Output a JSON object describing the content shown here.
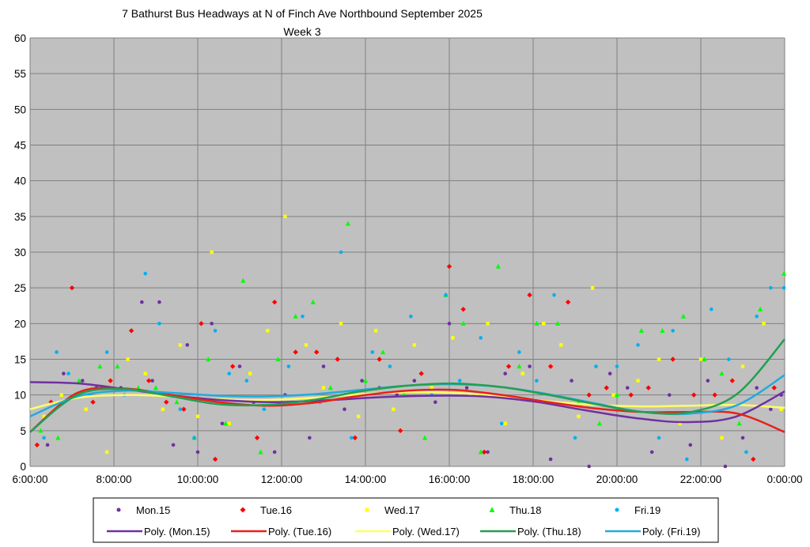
{
  "chart_data": {
    "type": "scatter",
    "title": "7 Bathurst Bus Headways at N of Finch Ave Northbound September 2025",
    "subtitle": "Week 3",
    "xlabel": "",
    "ylabel": "",
    "ylim": [
      0,
      60
    ],
    "y_ticks": [
      "0",
      "5",
      "10",
      "15",
      "20",
      "25",
      "30",
      "35",
      "40",
      "45",
      "50",
      "55",
      "60"
    ],
    "xlim": [
      "6:00:00",
      "0:00:00"
    ],
    "x_ticks": [
      "6:00:00",
      "8:00:00",
      "10:00:00",
      "12:00:00",
      "14:00:00",
      "16:00:00",
      "18:00:00",
      "20:00:00",
      "22:00:00",
      "0:00:00"
    ],
    "grid": true,
    "legend_placement": "bottom",
    "plot_background": "#c0c0c0",
    "series": [
      {
        "name": "Mon.15",
        "marker": "circle",
        "color": "#7030a0",
        "x": [
          "6:25",
          "6:48",
          "7:15",
          "7:35",
          "8:10",
          "8:40",
          "8:55",
          "9:05",
          "9:25",
          "9:45",
          "10:00",
          "10:20",
          "10:35",
          "11:00",
          "11:20",
          "11:50",
          "12:05",
          "12:40",
          "13:00",
          "13:30",
          "13:55",
          "14:20",
          "14:45",
          "15:10",
          "15:40",
          "16:00",
          "16:25",
          "16:55",
          "17:20",
          "17:55",
          "18:25",
          "18:55",
          "19:20",
          "19:50",
          "20:15",
          "20:50",
          "21:15",
          "21:45",
          "22:10",
          "22:35",
          "23:00",
          "23:20",
          "23:40",
          "23:55"
        ],
        "y": [
          3,
          13,
          12,
          11,
          11,
          23,
          12,
          23,
          3,
          17,
          2,
          20,
          6,
          14,
          9,
          2,
          10,
          4,
          14,
          8,
          12,
          11,
          10,
          12,
          9,
          20,
          11,
          2,
          13,
          14,
          1,
          12,
          0,
          13,
          11,
          2,
          10,
          3,
          12,
          0,
          4,
          11,
          8,
          10
        ],
        "fit": [
          11.8,
          11.6,
          10.7,
          9.8,
          9.2,
          9.0,
          9.3,
          9.7,
          9.9,
          9.8,
          9.1,
          7.9,
          6.8,
          6.2,
          6.9,
          10.5
        ]
      },
      {
        "name": "Tue.16",
        "marker": "diamond",
        "color": "#ff0000",
        "x": [
          "6:10",
          "6:30",
          "7:00",
          "7:30",
          "7:55",
          "8:25",
          "8:50",
          "9:15",
          "9:40",
          "10:05",
          "10:25",
          "10:50",
          "11:25",
          "11:50",
          "12:20",
          "12:50",
          "13:20",
          "13:45",
          "14:20",
          "14:50",
          "15:20",
          "16:00",
          "16:20",
          "16:50",
          "17:25",
          "17:55",
          "18:25",
          "18:50",
          "19:20",
          "19:45",
          "20:20",
          "20:45",
          "21:20",
          "21:50",
          "22:20",
          "22:45",
          "23:15",
          "23:45"
        ],
        "y": [
          3,
          9,
          25,
          9,
          12,
          19,
          12,
          9,
          8,
          20,
          1,
          14,
          4,
          23,
          16,
          16,
          15,
          4,
          15,
          5,
          13,
          28,
          22,
          2,
          14,
          24,
          14,
          23,
          10,
          11,
          10,
          11,
          15,
          10,
          10,
          12,
          1,
          11
        ],
        "fit": [
          4.8,
          10.3,
          10.9,
          10.0,
          9.0,
          8.5,
          8.9,
          9.9,
          10.6,
          10.7,
          10.0,
          9.0,
          8.1,
          7.6,
          7.6,
          7.4,
          4.8
        ]
      },
      {
        "name": "Wed.17",
        "marker": "square",
        "color": "#ffff00",
        "x": [
          "6:20",
          "6:45",
          "7:20",
          "7:50",
          "8:20",
          "8:45",
          "9:10",
          "9:35",
          "10:00",
          "10:20",
          "10:45",
          "11:15",
          "11:40",
          "12:05",
          "12:35",
          "13:00",
          "13:25",
          "13:50",
          "14:15",
          "14:40",
          "15:10",
          "15:35",
          "16:05",
          "16:30",
          "16:55",
          "17:20",
          "17:45",
          "18:15",
          "18:40",
          "19:05",
          "19:25",
          "19:55",
          "20:30",
          "21:00",
          "21:30",
          "22:00",
          "22:30",
          "23:00",
          "23:30",
          "23:55"
        ],
        "y": [
          7,
          10,
          8,
          2,
          15,
          13,
          8,
          17,
          7,
          30,
          6,
          13,
          19,
          35,
          17,
          11,
          20,
          7,
          19,
          8,
          17,
          11,
          18,
          10,
          20,
          6,
          13,
          20,
          17,
          7,
          25,
          10,
          12,
          15,
          6,
          15,
          4,
          14,
          20,
          8
        ],
        "fit": [
          8.0,
          9.6,
          10.0,
          9.8,
          9.4,
          9.3,
          9.6,
          10.1,
          10.4,
          10.3,
          9.8,
          9.1,
          8.6,
          8.4,
          8.5,
          8.6,
          8.2
        ]
      },
      {
        "name": "Thu.18",
        "marker": "triangle",
        "color": "#00ff00",
        "x": [
          "6:15",
          "6:40",
          "7:10",
          "7:40",
          "8:05",
          "8:35",
          "9:00",
          "9:30",
          "9:55",
          "10:15",
          "10:40",
          "11:05",
          "11:30",
          "11:55",
          "12:20",
          "12:45",
          "13:10",
          "13:35",
          "14:00",
          "14:25",
          "14:55",
          "15:25",
          "15:55",
          "16:20",
          "16:45",
          "17:10",
          "17:40",
          "18:05",
          "18:35",
          "19:05",
          "19:35",
          "20:00",
          "20:35",
          "21:05",
          "21:35",
          "22:05",
          "22:30",
          "22:55",
          "23:25",
          "23:59"
        ],
        "y": [
          5,
          4,
          12,
          14,
          14,
          11,
          11,
          9,
          4,
          15,
          6,
          26,
          2,
          15,
          21,
          23,
          11,
          34,
          12,
          16,
          10,
          4,
          24,
          20,
          2,
          28,
          14,
          20,
          20,
          9,
          6,
          10,
          19,
          19,
          21,
          15,
          13,
          6,
          22,
          27
        ],
        "fit": [
          4.8,
          10.0,
          10.8,
          9.8,
          8.7,
          8.6,
          9.3,
          10.5,
          11.3,
          11.6,
          11.1,
          10.0,
          8.7,
          7.6,
          7.6,
          10.2,
          17.8
        ]
      },
      {
        "name": "Fri.19",
        "marker": "circle",
        "color": "#00b0f0",
        "x": [
          "6:20",
          "6:38",
          "6:55",
          "7:25",
          "7:50",
          "8:15",
          "8:45",
          "9:05",
          "9:35",
          "9:55",
          "10:25",
          "10:45",
          "11:10",
          "11:35",
          "12:10",
          "12:30",
          "12:55",
          "13:25",
          "13:40",
          "14:10",
          "14:35",
          "15:05",
          "15:35",
          "15:55",
          "16:15",
          "16:45",
          "17:15",
          "17:40",
          "18:05",
          "18:30",
          "19:00",
          "19:30",
          "20:00",
          "20:30",
          "21:00",
          "21:20",
          "21:40",
          "22:15",
          "22:40",
          "23:05",
          "23:20",
          "23:40",
          "23:59"
        ],
        "y": [
          4,
          16,
          13,
          10,
          16,
          10,
          27,
          20,
          8,
          4,
          19,
          13,
          12,
          8,
          14,
          21,
          9,
          30,
          4,
          16,
          14,
          21,
          10,
          24,
          12,
          18,
          6,
          16,
          12,
          24,
          4,
          14,
          14,
          17,
          4,
          19,
          1,
          22,
          15,
          2,
          21,
          25,
          25
        ],
        "fit": [
          7.0,
          9.8,
          10.6,
          10.3,
          9.9,
          9.8,
          10.1,
          10.7,
          11.3,
          11.5,
          11.1,
          10.1,
          8.8,
          7.6,
          7.4,
          8.6,
          12.8
        ]
      }
    ],
    "legend": [
      {
        "label": "Mon.15",
        "kind": "marker",
        "series": 0
      },
      {
        "label": "Tue.16",
        "kind": "marker",
        "series": 1
      },
      {
        "label": "Wed.17",
        "kind": "marker",
        "series": 2
      },
      {
        "label": "Thu.18",
        "kind": "marker",
        "series": 3
      },
      {
        "label": "Fri.19",
        "kind": "marker",
        "series": 4
      },
      {
        "label": "Poly. (Mon.15)",
        "kind": "line",
        "series": 0,
        "line_color": "#7030a0"
      },
      {
        "label": "Poly. (Tue.16)",
        "kind": "line",
        "series": 1,
        "line_color": "#e8201a"
      },
      {
        "label": "Poly. (Wed.17)",
        "kind": "line",
        "series": 2,
        "line_color": "#ffff66"
      },
      {
        "label": "Poly. (Thu.18)",
        "kind": "line",
        "series": 3,
        "line_color": "#22a050"
      },
      {
        "label": "Poly. (Fri.19)",
        "kind": "line",
        "series": 4,
        "line_color": "#22aadd"
      }
    ]
  }
}
